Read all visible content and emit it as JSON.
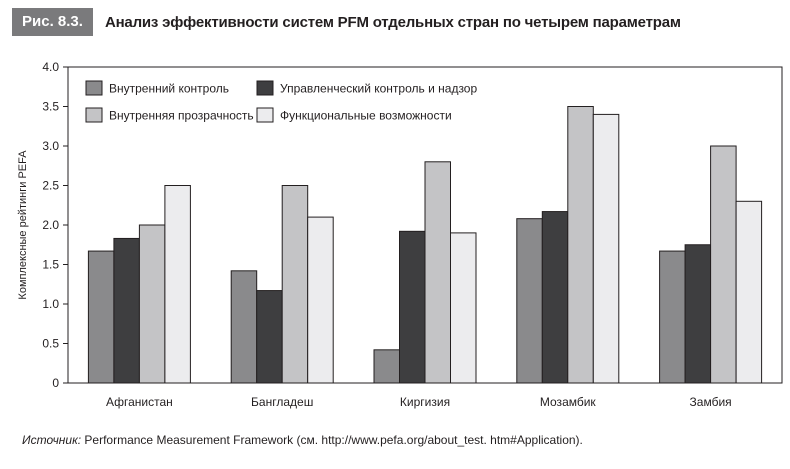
{
  "figure": {
    "label": "Рис. 8.3.",
    "title": "Анализ эффективности систем PFM отдельных стран по четырем параметрам"
  },
  "source": {
    "label": "Источник:",
    "text": " Performance Measurement Framework (см. http://www.pefa.org/about_test. htm#Application)."
  },
  "colors": {
    "series": [
      "#8a8a8c",
      "#3e3e40",
      "#c4c4c6",
      "#ececee"
    ],
    "stroke": "#231f20",
    "header_bg": "#7a7a7c"
  },
  "chart_data": {
    "type": "bar",
    "title": "Анализ эффективности систем PFM отдельных стран по четырем параметрам",
    "xlabel": "",
    "ylabel": "Комплексные рейтинги PEFA",
    "ylim": [
      0,
      4.0
    ],
    "yticks": [
      "0",
      "0.5",
      "1.0",
      "1.5",
      "2.0",
      "2.5",
      "3.0",
      "3.5",
      "4.0"
    ],
    "grid": false,
    "legend_position": "top-left",
    "categories": [
      "Афганистан",
      "Бангладеш",
      "Киргизия",
      "Мозамбик",
      "Замбия"
    ],
    "series": [
      {
        "name": "Внутренний контроль",
        "values": [
          1.67,
          1.42,
          0.42,
          2.08,
          1.67
        ]
      },
      {
        "name": "Управленческий контроль и надзор",
        "values": [
          1.83,
          1.17,
          1.92,
          2.17,
          1.75
        ]
      },
      {
        "name": "Внутренняя прозрачность",
        "values": [
          2.0,
          2.5,
          2.8,
          3.5,
          3.0
        ]
      },
      {
        "name": "Функциональные возможности",
        "values": [
          2.5,
          2.1,
          1.9,
          3.4,
          2.3
        ]
      }
    ]
  }
}
